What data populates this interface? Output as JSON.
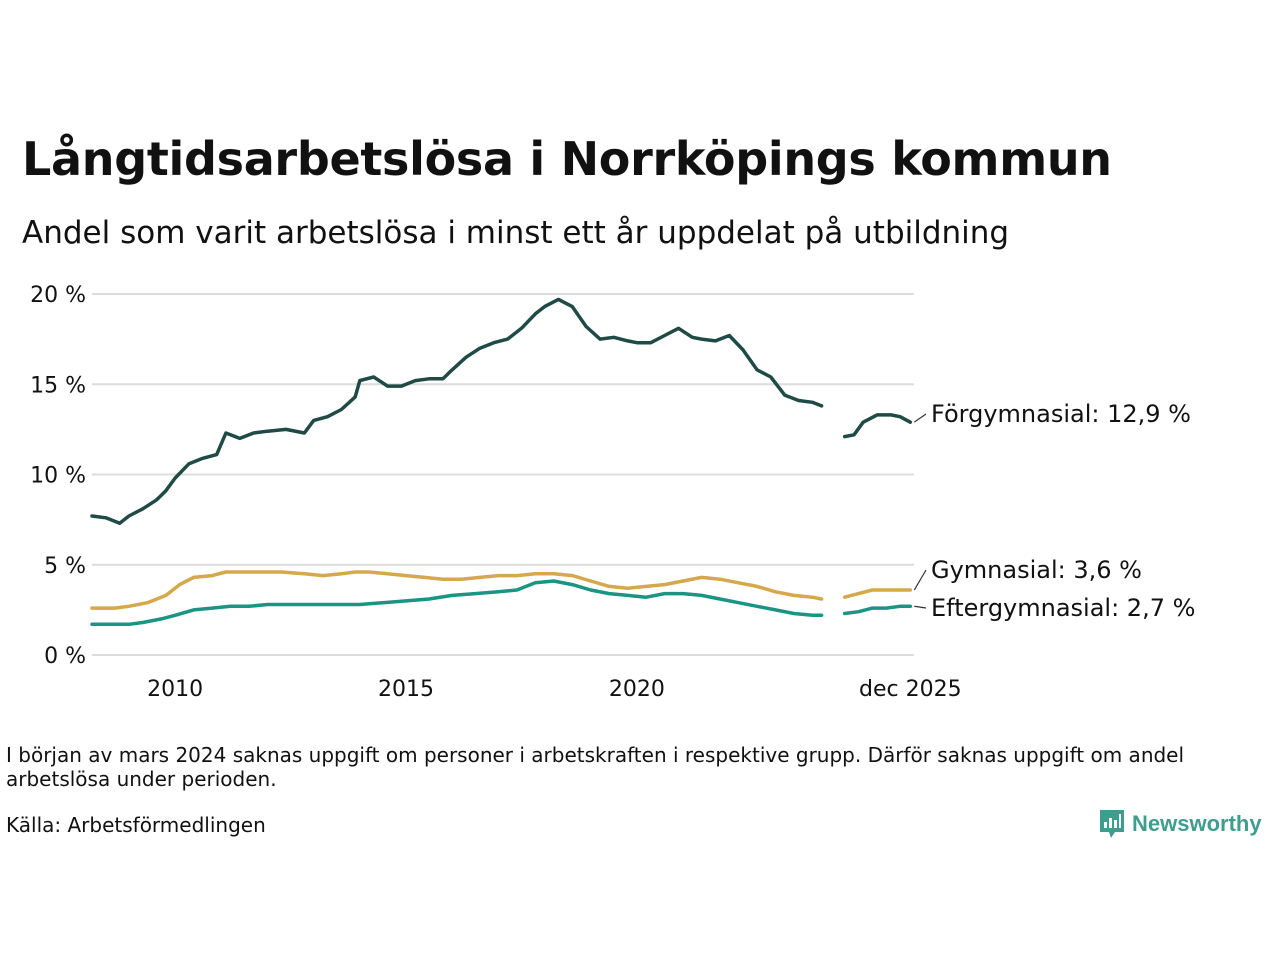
{
  "chart_data": {
    "type": "line",
    "title": "Långtidsarbetslösa i Norrköpings kommun",
    "subtitle": "Andel som varit arbetslösa i minst ett år uppdelat på utbildning",
    "xlabel": "",
    "ylabel": "",
    "ylim": [
      0,
      20
    ],
    "xlim": [
      2008.2,
      2026.0
    ],
    "y_ticks": [
      {
        "value": 0,
        "label": "0 %"
      },
      {
        "value": 5,
        "label": "5 %"
      },
      {
        "value": 10,
        "label": "10 %"
      },
      {
        "value": 15,
        "label": "15 %"
      },
      {
        "value": 20,
        "label": "20 %"
      }
    ],
    "x_ticks": [
      {
        "value": 2010,
        "label": "2010"
      },
      {
        "value": 2015,
        "label": "2015"
      },
      {
        "value": 2020,
        "label": "2020"
      },
      {
        "value": 2025.92,
        "label": "dec 2025"
      }
    ],
    "grid": true,
    "gap": [
      2024.0,
      2024.5
    ],
    "series": [
      {
        "name": "Förgymnasial",
        "label": "Förgymnasial: 12,9 %",
        "color": "#1f4a45",
        "x": [
          2008.2,
          2008.5,
          2008.8,
          2009.0,
          2009.3,
          2009.6,
          2009.8,
          2010.0,
          2010.3,
          2010.6,
          2010.9,
          2011.1,
          2011.4,
          2011.7,
          2012.0,
          2012.4,
          2012.8,
          2013.0,
          2013.3,
          2013.6,
          2013.9,
          2014.0,
          2014.3,
          2014.6,
          2014.9,
          2015.2,
          2015.5,
          2015.8,
          2016.0,
          2016.3,
          2016.6,
          2016.9,
          2017.2,
          2017.5,
          2017.8,
          2018.0,
          2018.3,
          2018.6,
          2018.9,
          2019.2,
          2019.5,
          2019.8,
          2020.0,
          2020.3,
          2020.6,
          2020.9,
          2021.2,
          2021.4,
          2021.7,
          2022.0,
          2022.3,
          2022.6,
          2022.9,
          2023.2,
          2023.5,
          2023.8,
          2024.0,
          2024.5,
          2024.7,
          2024.9,
          2025.2,
          2025.5,
          2025.7,
          2025.92
        ],
        "values": [
          7.7,
          7.6,
          7.3,
          7.7,
          8.1,
          8.6,
          9.1,
          9.8,
          10.6,
          10.9,
          11.1,
          12.3,
          12.0,
          12.3,
          12.4,
          12.5,
          12.3,
          13.0,
          13.2,
          13.6,
          14.3,
          15.2,
          15.4,
          14.9,
          14.9,
          15.2,
          15.3,
          15.3,
          15.8,
          16.5,
          17.0,
          17.3,
          17.5,
          18.1,
          18.9,
          19.3,
          19.7,
          19.3,
          18.2,
          17.5,
          17.6,
          17.4,
          17.3,
          17.3,
          17.7,
          18.1,
          17.6,
          17.5,
          17.4,
          17.7,
          16.9,
          15.8,
          15.4,
          14.4,
          14.1,
          14.0,
          13.8,
          12.1,
          12.2,
          12.9,
          13.3,
          13.3,
          13.2,
          12.9
        ]
      },
      {
        "name": "Gymnasial",
        "label": "Gymnasial:  3,6 %",
        "color": "#d4a84b",
        "x": [
          2008.2,
          2008.7,
          2009.0,
          2009.4,
          2009.8,
          2010.1,
          2010.4,
          2010.8,
          2011.1,
          2011.5,
          2011.9,
          2012.3,
          2012.8,
          2013.2,
          2013.6,
          2013.9,
          2014.2,
          2014.6,
          2015.0,
          2015.4,
          2015.8,
          2016.2,
          2016.6,
          2017.0,
          2017.4,
          2017.8,
          2018.2,
          2018.6,
          2019.0,
          2019.4,
          2019.8,
          2020.2,
          2020.6,
          2021.0,
          2021.4,
          2021.8,
          2022.2,
          2022.6,
          2023.0,
          2023.4,
          2023.8,
          2024.0,
          2024.5,
          2024.8,
          2025.1,
          2025.4,
          2025.7,
          2025.92
        ],
        "values": [
          2.6,
          2.6,
          2.7,
          2.9,
          3.3,
          3.9,
          4.3,
          4.4,
          4.6,
          4.6,
          4.6,
          4.6,
          4.5,
          4.4,
          4.5,
          4.6,
          4.6,
          4.5,
          4.4,
          4.3,
          4.2,
          4.2,
          4.3,
          4.4,
          4.4,
          4.5,
          4.5,
          4.4,
          4.1,
          3.8,
          3.7,
          3.8,
          3.9,
          4.1,
          4.3,
          4.2,
          4.0,
          3.8,
          3.5,
          3.3,
          3.2,
          3.1,
          3.2,
          3.4,
          3.6,
          3.6,
          3.6,
          3.6
        ]
      },
      {
        "name": "Eftergymnasial",
        "label": "Eftergymnasial:  2,7 %",
        "color": "#1a9583",
        "x": [
          2008.2,
          2008.7,
          2009.0,
          2009.3,
          2009.7,
          2010.0,
          2010.4,
          2010.8,
          2011.2,
          2011.6,
          2012.0,
          2012.5,
          2013.0,
          2013.5,
          2014.0,
          2014.5,
          2015.0,
          2015.5,
          2016.0,
          2016.5,
          2017.0,
          2017.4,
          2017.8,
          2018.2,
          2018.6,
          2019.0,
          2019.4,
          2019.8,
          2020.2,
          2020.6,
          2021.0,
          2021.4,
          2021.8,
          2022.2,
          2022.6,
          2023.0,
          2023.4,
          2023.8,
          2024.0,
          2024.5,
          2024.8,
          2025.1,
          2025.4,
          2025.7,
          2025.92
        ],
        "values": [
          1.7,
          1.7,
          1.7,
          1.8,
          2.0,
          2.2,
          2.5,
          2.6,
          2.7,
          2.7,
          2.8,
          2.8,
          2.8,
          2.8,
          2.8,
          2.9,
          3.0,
          3.1,
          3.3,
          3.4,
          3.5,
          3.6,
          4.0,
          4.1,
          3.9,
          3.6,
          3.4,
          3.3,
          3.2,
          3.4,
          3.4,
          3.3,
          3.1,
          2.9,
          2.7,
          2.5,
          2.3,
          2.2,
          2.2,
          2.3,
          2.4,
          2.6,
          2.6,
          2.7,
          2.7
        ]
      }
    ]
  },
  "note": "I början av mars 2024 saknas uppgift om personer i arbetskraften i respektive grupp. Därför saknas uppgift om andel arbetslösa under perioden.",
  "source": "Källa: Arbetsförmedlingen",
  "brand": {
    "name": "Newsworthy",
    "icon": "newsworthy-logo-icon",
    "color": "#3e9d8d"
  }
}
